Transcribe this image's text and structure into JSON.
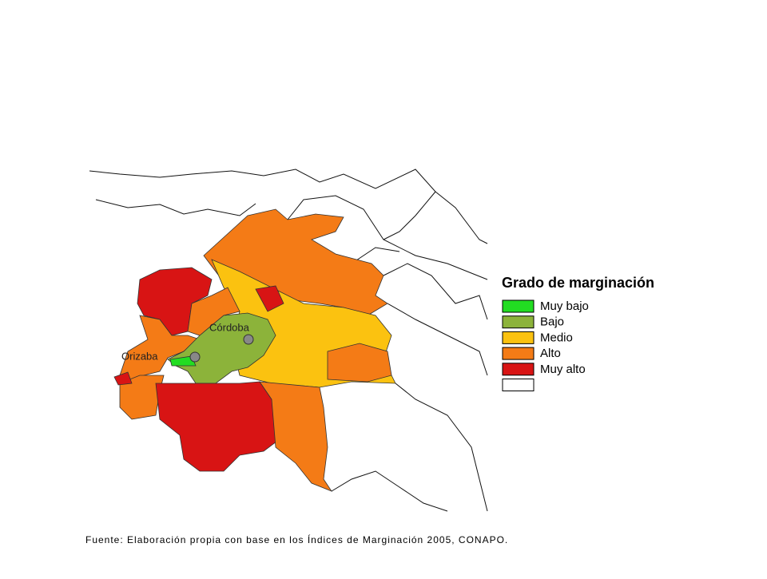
{
  "legend": {
    "title": "Grado de marginación",
    "items": [
      {
        "label": "Muy bajo",
        "color": "#22dd22"
      },
      {
        "label": "Bajo",
        "color": "#8cb33a"
      },
      {
        "label": "Medio",
        "color": "#fbc210"
      },
      {
        "label": "Alto",
        "color": "#f47b16"
      },
      {
        "label": "Muy alto",
        "color": "#d81414"
      },
      {
        "color": "#ffffff"
      }
    ]
  },
  "cities": [
    {
      "label": "Orizaba"
    },
    {
      "label": "Córdoba"
    }
  ],
  "source": "Fuente: Elaboración propia con base en los Índices de Marginación 2005, CONAPO."
}
